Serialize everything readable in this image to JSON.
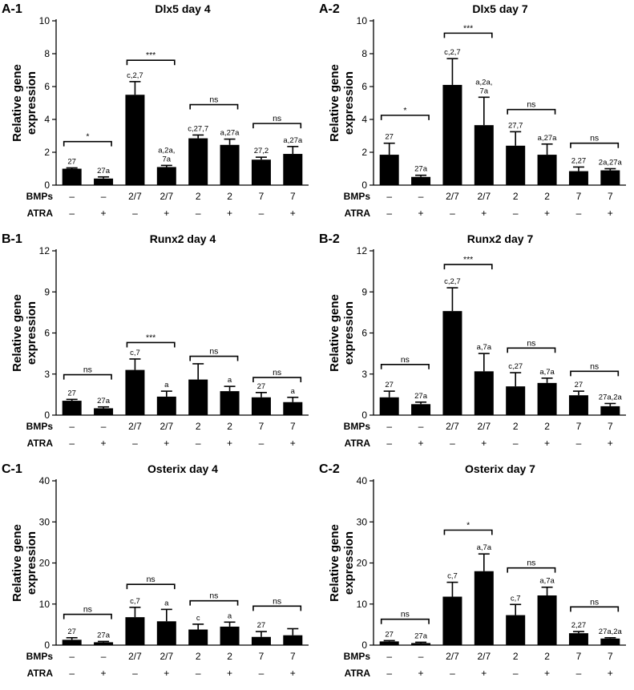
{
  "row_headers": {
    "bmps": "BMPs",
    "atra": "ATRA"
  },
  "bmps_row": [
    "–",
    "–",
    "2/7",
    "2/7",
    "2",
    "2",
    "7",
    "7"
  ],
  "atra_row": [
    "–",
    "+",
    "–",
    "+",
    "–",
    "+",
    "–",
    "+"
  ],
  "chart_data": [
    {
      "panel": "A-1",
      "type": "bar",
      "title": "Dlx5 day 4",
      "ylabel": "Relative gene expression",
      "ylim": [
        0,
        10
      ],
      "yticks": [
        0,
        2,
        4,
        6,
        8,
        10
      ],
      "values": [
        1.0,
        0.4,
        5.5,
        1.1,
        2.85,
        2.45,
        1.55,
        1.9
      ],
      "errors": [
        0.05,
        0.1,
        0.8,
        0.1,
        0.2,
        0.35,
        0.15,
        0.45
      ],
      "labels": [
        [
          "27"
        ],
        [
          "27a"
        ],
        [
          "c,2,7"
        ],
        [
          "a,2a,",
          "7a"
        ],
        [
          "c,27,7"
        ],
        [
          "a,27a"
        ],
        [
          "27,2"
        ],
        [
          "a,27a"
        ]
      ],
      "comparisons": [
        {
          "from": 0,
          "to": 1,
          "y": 2.65,
          "text": "*"
        },
        {
          "from": 2,
          "to": 3,
          "y": 7.6,
          "text": "***"
        },
        {
          "from": 4,
          "to": 5,
          "y": 4.9,
          "text": "ns"
        },
        {
          "from": 6,
          "to": 7,
          "y": 3.75,
          "text": "ns"
        }
      ]
    },
    {
      "panel": "A-2",
      "type": "bar",
      "title": "Dlx5 day 7",
      "ylabel": "Relative gene expression",
      "ylim": [
        0,
        10
      ],
      "yticks": [
        0,
        2,
        4,
        6,
        8,
        10
      ],
      "values": [
        1.85,
        0.5,
        6.1,
        3.65,
        2.4,
        1.85,
        0.85,
        0.9
      ],
      "errors": [
        0.7,
        0.1,
        1.6,
        1.7,
        0.85,
        0.65,
        0.25,
        0.1
      ],
      "labels": [
        [
          "27"
        ],
        [
          "27a"
        ],
        [
          "c,2,7"
        ],
        [
          "a,2a,",
          "7a"
        ],
        [
          "27,7"
        ],
        [
          "a,27a"
        ],
        [
          "2,27"
        ],
        [
          "2a,27a"
        ]
      ],
      "comparisons": [
        {
          "from": 0,
          "to": 1,
          "y": 4.25,
          "text": "*"
        },
        {
          "from": 2,
          "to": 3,
          "y": 9.25,
          "text": "***"
        },
        {
          "from": 4,
          "to": 5,
          "y": 4.6,
          "text": "ns"
        },
        {
          "from": 6,
          "to": 7,
          "y": 2.55,
          "text": "ns"
        }
      ]
    },
    {
      "panel": "B-1",
      "type": "bar",
      "title": "Runx2 day 4",
      "ylabel": "Relative gene expression",
      "ylim": [
        0,
        12
      ],
      "yticks": [
        0,
        3,
        6,
        9,
        12
      ],
      "values": [
        1.05,
        0.5,
        3.3,
        1.35,
        2.6,
        1.75,
        1.3,
        0.95
      ],
      "errors": [
        0.1,
        0.1,
        0.8,
        0.4,
        1.15,
        0.35,
        0.35,
        0.35
      ],
      "labels": [
        [
          "27"
        ],
        [
          "27a"
        ],
        [
          "c,7"
        ],
        [
          "a"
        ],
        [],
        [
          "a"
        ],
        [
          "27"
        ],
        [
          "a"
        ]
      ],
      "comparisons": [
        {
          "from": 0,
          "to": 1,
          "y": 2.95,
          "text": "ns"
        },
        {
          "from": 2,
          "to": 3,
          "y": 5.3,
          "text": "***"
        },
        {
          "from": 4,
          "to": 5,
          "y": 4.3,
          "text": "ns"
        },
        {
          "from": 6,
          "to": 7,
          "y": 2.75,
          "text": "ns"
        }
      ]
    },
    {
      "panel": "B-2",
      "type": "bar",
      "title": "Runx2 day 7",
      "ylabel": "Relative gene expression",
      "ylim": [
        0,
        12
      ],
      "yticks": [
        0,
        3,
        6,
        9,
        12
      ],
      "values": [
        1.3,
        0.8,
        7.6,
        3.2,
        2.1,
        2.35,
        1.45,
        0.65
      ],
      "errors": [
        0.45,
        0.15,
        1.7,
        1.3,
        1.0,
        0.35,
        0.3,
        0.2
      ],
      "labels": [
        [
          "27"
        ],
        [
          "27a"
        ],
        [
          "c,2,7"
        ],
        [
          "a,7a"
        ],
        [
          "c,27"
        ],
        [
          "a,7a"
        ],
        [
          "27"
        ],
        [
          "27a,2a"
        ]
      ],
      "comparisons": [
        {
          "from": 0,
          "to": 1,
          "y": 3.7,
          "text": "ns"
        },
        {
          "from": 2,
          "to": 3,
          "y": 11.0,
          "text": "***"
        },
        {
          "from": 4,
          "to": 5,
          "y": 4.9,
          "text": "ns"
        },
        {
          "from": 6,
          "to": 7,
          "y": 3.2,
          "text": "ns"
        }
      ]
    },
    {
      "panel": "C-1",
      "type": "bar",
      "title": "Osterix day 4",
      "ylabel": "Relative gene expression",
      "ylim": [
        0,
        40
      ],
      "yticks": [
        0,
        10,
        20,
        30,
        40
      ],
      "values": [
        1.3,
        0.7,
        6.8,
        5.8,
        3.8,
        4.5,
        2.0,
        2.4
      ],
      "errors": [
        0.5,
        0.2,
        2.4,
        2.9,
        1.3,
        1.1,
        1.3,
        1.6
      ],
      "labels": [
        [
          "27"
        ],
        [
          "27a"
        ],
        [
          "c,7"
        ],
        [
          "a"
        ],
        [
          "c"
        ],
        [
          "a"
        ],
        [
          "27"
        ],
        []
      ],
      "comparisons": [
        {
          "from": 0,
          "to": 1,
          "y": 7.5,
          "text": "ns"
        },
        {
          "from": 2,
          "to": 3,
          "y": 14.8,
          "text": "ns"
        },
        {
          "from": 4,
          "to": 5,
          "y": 10.8,
          "text": "ns"
        },
        {
          "from": 6,
          "to": 7,
          "y": 9.5,
          "text": "ns"
        }
      ]
    },
    {
      "panel": "C-2",
      "type": "bar",
      "title": "Osterix day 7",
      "ylabel": "Relative gene expression",
      "ylim": [
        0,
        40
      ],
      "yticks": [
        0,
        10,
        20,
        30,
        40
      ],
      "values": [
        0.9,
        0.5,
        11.8,
        18.0,
        7.3,
        12.1,
        2.9,
        1.6
      ],
      "errors": [
        0.2,
        0.2,
        3.5,
        4.2,
        2.6,
        2.0,
        0.4,
        0.2
      ],
      "labels": [
        [
          "27"
        ],
        [
          "27a"
        ],
        [
          "c,7"
        ],
        [
          "a,7a"
        ],
        [
          "c,7"
        ],
        [
          "a,7a"
        ],
        [
          "2,27"
        ],
        [
          "27a,2a"
        ]
      ],
      "comparisons": [
        {
          "from": 0,
          "to": 1,
          "y": 6.3,
          "text": "ns"
        },
        {
          "from": 2,
          "to": 3,
          "y": 28.0,
          "text": "*"
        },
        {
          "from": 4,
          "to": 5,
          "y": 18.8,
          "text": "ns"
        },
        {
          "from": 6,
          "to": 7,
          "y": 9.3,
          "text": "ns"
        }
      ]
    }
  ]
}
